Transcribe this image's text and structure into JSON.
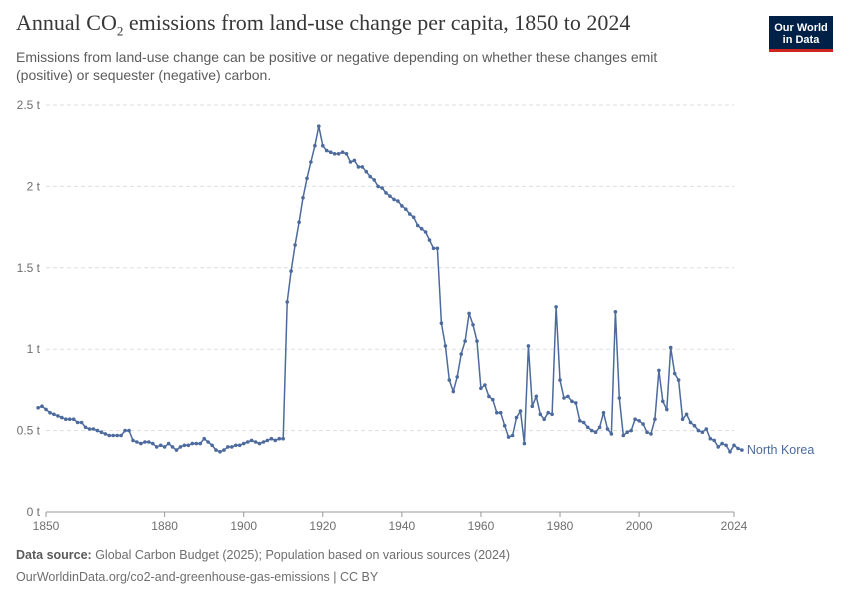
{
  "header": {
    "title_main": "Annual CO",
    "title_sub": "2",
    "title_rest": " emissions from land-use change per capita, 1850 to 2024",
    "subtitle": "Emissions from land-use change can be positive or negative depending on whether these changes emit (positive) or sequester (negative) carbon.",
    "logo_line1": "Our World",
    "logo_line2": "in Data"
  },
  "footer": {
    "source_label": "Data source:",
    "source_text": " Global Carbon Budget (2025); Population based on various sources (2024)",
    "url_license": "OurWorldinData.org/co2-and-greenhouse-gas-emissions | CC BY"
  },
  "chart_data": {
    "type": "line",
    "title": "Annual CO2 emissions from land-use change per capita, 1850 to 2024",
    "xlabel": "",
    "ylabel": "",
    "xlim": [
      1850,
      2024
    ],
    "ylim": [
      0,
      2.5
    ],
    "x_ticks": [
      1850,
      1880,
      1900,
      1920,
      1940,
      1960,
      1980,
      2000,
      2024
    ],
    "y_ticks": [
      0,
      0.5,
      1,
      1.5,
      2,
      2.5
    ],
    "y_tick_labels": [
      "0 t",
      "0.5 t",
      "1 t",
      "1.5 t",
      "2 t",
      "2.5 t"
    ],
    "grid": "horizontal dashed",
    "line_color": "#4c6a9c",
    "series": [
      {
        "name": "North Korea",
        "x_start": 1848,
        "values": [
          0.64,
          0.65,
          0.63,
          0.61,
          0.6,
          0.59,
          0.58,
          0.57,
          0.57,
          0.57,
          0.55,
          0.55,
          0.52,
          0.51,
          0.51,
          0.5,
          0.49,
          0.48,
          0.47,
          0.47,
          0.47,
          0.47,
          0.5,
          0.5,
          0.44,
          0.43,
          0.42,
          0.43,
          0.43,
          0.42,
          0.4,
          0.41,
          0.4,
          0.42,
          0.4,
          0.38,
          0.4,
          0.41,
          0.41,
          0.42,
          0.42,
          0.42,
          0.45,
          0.43,
          0.41,
          0.38,
          0.37,
          0.38,
          0.4,
          0.4,
          0.41,
          0.41,
          0.42,
          0.43,
          0.44,
          0.43,
          0.42,
          0.43,
          0.44,
          0.45,
          0.44,
          0.45,
          0.45,
          1.29,
          1.48,
          1.64,
          1.78,
          1.93,
          2.05,
          2.15,
          2.25,
          2.37,
          2.25,
          2.22,
          2.21,
          2.2,
          2.2,
          2.21,
          2.2,
          2.15,
          2.16,
          2.12,
          2.12,
          2.09,
          2.06,
          2.04,
          2.0,
          1.99,
          1.96,
          1.94,
          1.92,
          1.91,
          1.88,
          1.86,
          1.83,
          1.81,
          1.76,
          1.74,
          1.72,
          1.67,
          1.62,
          1.62,
          1.16,
          1.02,
          0.81,
          0.74,
          0.83,
          0.97,
          1.05,
          1.22,
          1.15,
          1.05,
          0.76,
          0.78,
          0.71,
          0.69,
          0.61,
          0.61,
          0.53,
          0.46,
          0.47,
          0.58,
          0.62,
          0.42,
          1.02,
          0.65,
          0.71,
          0.6,
          0.57,
          0.61,
          0.6,
          1.26,
          0.81,
          0.7,
          0.71,
          0.68,
          0.67,
          0.56,
          0.55,
          0.52,
          0.5,
          0.49,
          0.52,
          0.61,
          0.51,
          0.48,
          1.23,
          0.7,
          0.47,
          0.49,
          0.5,
          0.57,
          0.56,
          0.54,
          0.49,
          0.48,
          0.57,
          0.87,
          0.68,
          0.63,
          1.01,
          0.85,
          0.81,
          0.57,
          0.6,
          0.55,
          0.53,
          0.5,
          0.49,
          0.51,
          0.45,
          0.44,
          0.4,
          0.42,
          0.41,
          0.37,
          0.41,
          0.39,
          0.38
        ]
      }
    ]
  }
}
